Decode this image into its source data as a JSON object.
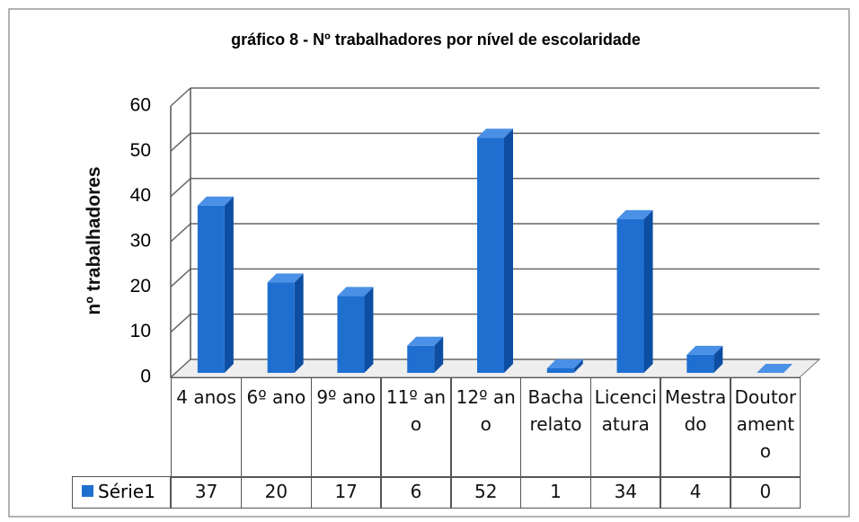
{
  "chart_data": {
    "type": "bar3d",
    "title": "gráfico 8 - Nº trabalhadores por nível de escolaridade",
    "y_label": "nº trabalhadores",
    "categories": [
      "4 anos",
      "6º ano",
      "9º ano",
      "11º ano",
      "12º ano",
      "Bacharelato",
      "Licenciatura",
      "Mestrado",
      "Doutoramento"
    ],
    "series": [
      {
        "name": "Série1",
        "color": "#1f6fd1",
        "values": [
          37,
          20,
          17,
          6,
          52,
          1,
          34,
          4,
          0
        ]
      }
    ],
    "ylim": [
      0,
      60
    ],
    "yticks": [
      0,
      10,
      20,
      30,
      40,
      50,
      60
    ],
    "grid": true,
    "legend": "data-table"
  }
}
